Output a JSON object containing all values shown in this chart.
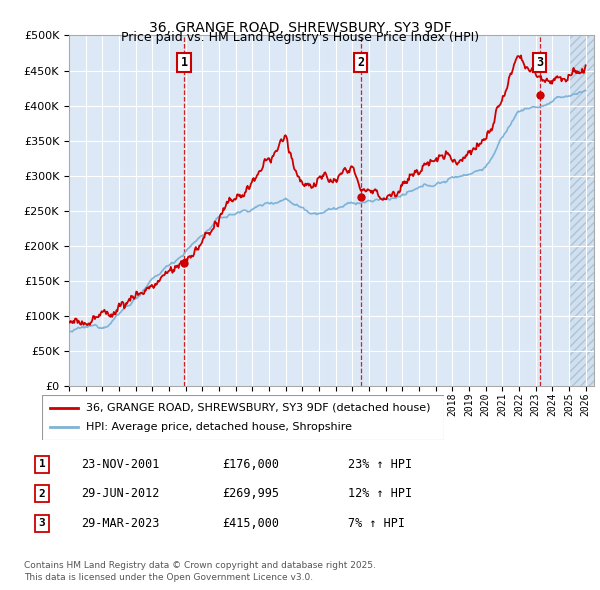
{
  "title": "36, GRANGE ROAD, SHREWSBURY, SY3 9DF",
  "subtitle": "Price paid vs. HM Land Registry's House Price Index (HPI)",
  "hpi_color": "#7eb3d8",
  "price_color": "#cc0000",
  "plot_bg_color": "#dce8f5",
  "ylim": [
    0,
    500000
  ],
  "yticks": [
    0,
    50000,
    100000,
    150000,
    200000,
    250000,
    300000,
    350000,
    400000,
    450000,
    500000
  ],
  "ytick_labels": [
    "£0",
    "£50K",
    "£100K",
    "£150K",
    "£200K",
    "£250K",
    "£300K",
    "£350K",
    "£400K",
    "£450K",
    "£500K"
  ],
  "xlim_start": 1995.0,
  "xlim_end": 2026.5,
  "purchase_prices": [
    176000,
    269995,
    415000
  ],
  "purchase_labels": [
    "1",
    "2",
    "3"
  ],
  "purchase_pct": [
    "23%",
    "12%",
    "7%"
  ],
  "purchase_date_labels": [
    "23-NOV-2001",
    "29-JUN-2012",
    "29-MAR-2023"
  ],
  "purchase_date_nums": [
    2001.9,
    2012.5,
    2023.25
  ],
  "legend_line1": "36, GRANGE ROAD, SHREWSBURY, SY3 9DF (detached house)",
  "legend_line2": "HPI: Average price, detached house, Shropshire",
  "footer1": "Contains HM Land Registry data © Crown copyright and database right 2025.",
  "footer2": "This data is licensed under the Open Government Licence v3.0.",
  "hatch_region_start": 2025.0,
  "future_hatch_color": "#c8d8e8"
}
